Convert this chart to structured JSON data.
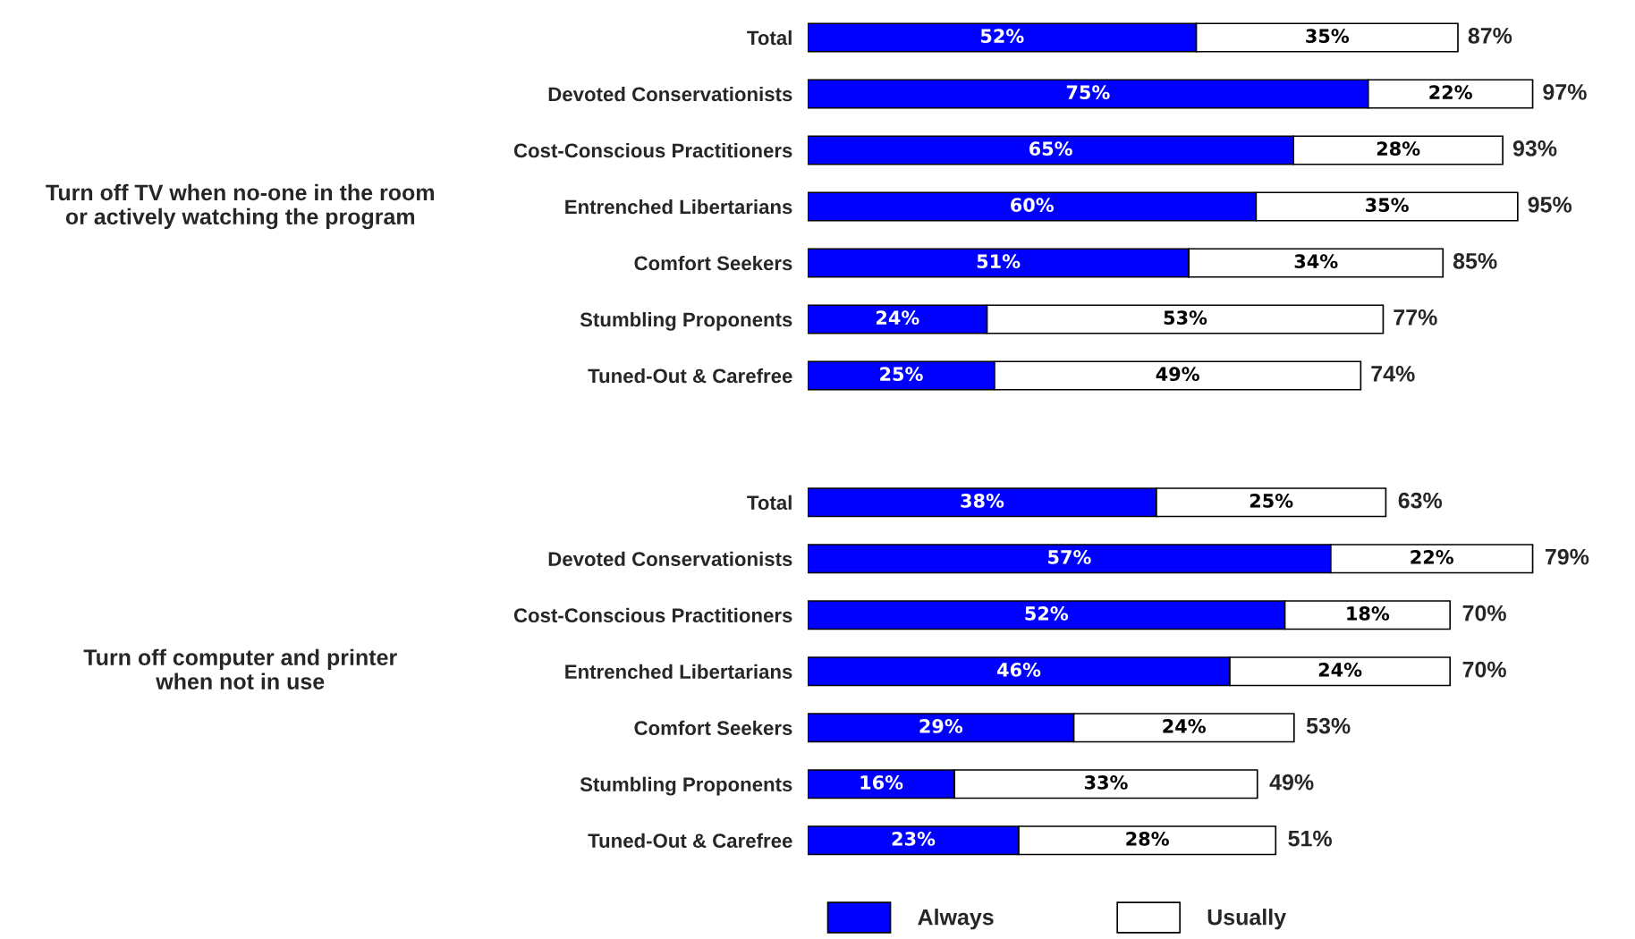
{
  "chart_data": [
    {
      "type": "bar",
      "orientation": "horizontal",
      "stacked": true,
      "ylabel": "Turn off TV when no-one in the room\nor actively watching the program",
      "tick_labels": "y",
      "legend": false,
      "categories": [
        "Total",
        "Devoted Conservationists",
        "Cost-Conscious Practitioners",
        "Entrenched Libertarians",
        "Comfort Seekers",
        "Stumbling Proponents",
        "Tuned-Out & Carefree"
      ],
      "series": [
        {
          "color": "#0000ff",
          "values": [
            52,
            75,
            65,
            60,
            51,
            24,
            25
          ],
          "value_labels": [
            "52%",
            "75%",
            "65%",
            "60%",
            "51%",
            "24%",
            "25%"
          ]
        },
        {
          "color": "#ffffff",
          "values": [
            35,
            22,
            28,
            35,
            34,
            53,
            49
          ],
          "value_labels": [
            "35%",
            "22%",
            "28%",
            "35%",
            "34%",
            "53%",
            "49%"
          ]
        }
      ],
      "totals": [
        "87%",
        "97%",
        "93%",
        "95%",
        "85%",
        "77%",
        "74%"
      ]
    },
    {
      "type": "bar",
      "orientation": "horizontal",
      "stacked": true,
      "ylabel": "Turn off computer and printer\nwhen not in use",
      "tick_labels": "y",
      "legend": "bottom",
      "categories": [
        "Total",
        "Devoted Conservationists",
        "Cost-Conscious Practitioners",
        "Entrenched Libertarians",
        "Comfort Seekers",
        "Stumbling Proponents",
        "Tuned-Out & Carefree"
      ],
      "series": [
        {
          "name": "Always",
          "color": "#0000ff",
          "values": [
            38,
            57,
            52,
            46,
            29,
            16,
            23
          ],
          "value_labels": [
            "38%",
            "57%",
            "52%",
            "46%",
            "29%",
            "16%",
            "23%"
          ]
        },
        {
          "name": "Usually",
          "color": "#ffffff",
          "values": [
            25,
            22,
            18,
            24,
            24,
            33,
            28
          ],
          "value_labels": [
            "25%",
            "22%",
            "18%",
            "24%",
            "24%",
            "33%",
            "28%"
          ]
        }
      ],
      "totals": [
        "63%",
        "79%",
        "70%",
        "70%",
        "53%",
        "49%",
        "51%"
      ]
    }
  ]
}
